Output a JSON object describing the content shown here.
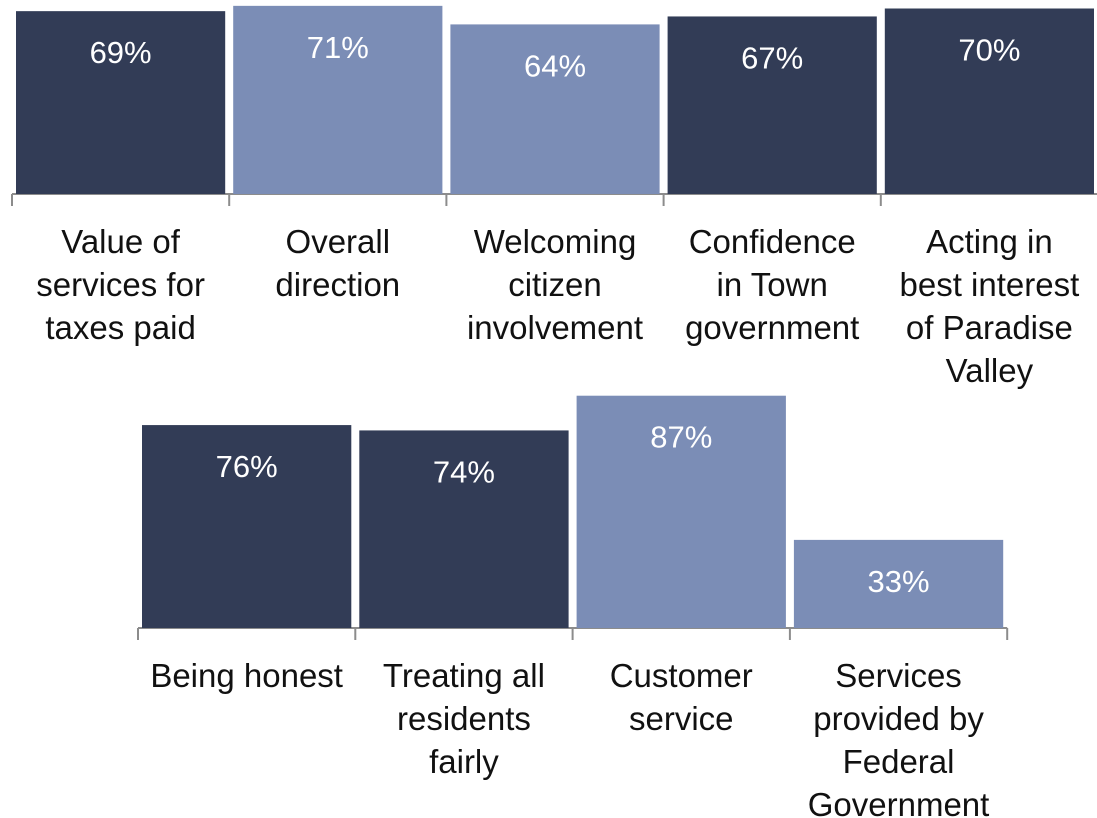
{
  "chart_data": [
    {
      "type": "bar",
      "categories": [
        "Value of services for taxes paid",
        "Overall direction",
        "Welcoming citizen involvement",
        "Confidence in Town government",
        "Acting in best interest of Paradise Valley"
      ],
      "category_lines": [
        [
          "Value of",
          "services for",
          "taxes paid"
        ],
        [
          "Overall",
          "direction"
        ],
        [
          "Welcoming",
          "citizen",
          "involvement"
        ],
        [
          "Confidence",
          "in Town",
          "government"
        ],
        [
          "Acting in",
          "best interest",
          "of Paradise",
          "Valley"
        ]
      ],
      "values": [
        69,
        71,
        64,
        67,
        70
      ],
      "data_labels": [
        "69%",
        "71%",
        "64%",
        "67%",
        "70%"
      ],
      "bar_colors": [
        "#323c56",
        "#7b8db6",
        "#7b8db6",
        "#323c56",
        "#323c56"
      ],
      "ylim": [
        0,
        100
      ],
      "grid": false
    },
    {
      "type": "bar",
      "categories": [
        "Being honest",
        "Treating all residents fairly",
        "Customer service",
        "Services provided by Federal Government"
      ],
      "category_lines": [
        [
          "Being honest"
        ],
        [
          "Treating all",
          "residents",
          "fairly"
        ],
        [
          "Customer",
          "service"
        ],
        [
          "Services",
          "provided by",
          "Federal",
          "Government"
        ]
      ],
      "values": [
        76,
        74,
        87,
        33
      ],
      "data_labels": [
        "76%",
        "74%",
        "87%",
        "33%"
      ],
      "bar_colors": [
        "#323c56",
        "#323c56",
        "#7b8db6",
        "#7b8db6"
      ],
      "ylim": [
        0,
        100
      ],
      "grid": false
    }
  ],
  "colors": {
    "dark_bar": "#323c56",
    "light_bar": "#7b8db6",
    "axis": "#8c8c8c",
    "text": "#111111"
  }
}
